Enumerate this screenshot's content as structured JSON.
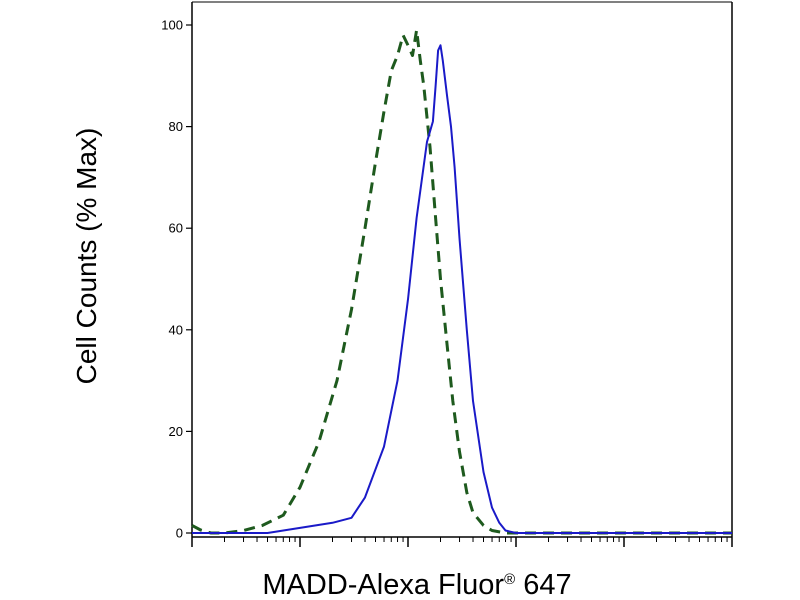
{
  "chart_data": {
    "type": "line",
    "title": "",
    "xlabel": "MADD-Alexa Fluor",
    "xlabel_reg": "®",
    "xlabel_num": " 647",
    "ylabel": "Cell Counts (% Max)",
    "x_scale": "log",
    "xlim": [
      0.1,
      10000
    ],
    "ylim": [
      0,
      100
    ],
    "yticks": [
      0,
      20,
      40,
      60,
      80,
      100
    ],
    "ytick_labels": [
      "0",
      "20",
      "40",
      "60",
      "80",
      "100"
    ],
    "grid": false,
    "legend": "none",
    "series": [
      {
        "style": "dashed",
        "color": "#1e5a1e",
        "x": [
          0.1,
          0.12,
          0.15,
          0.2,
          0.3,
          0.45,
          0.7,
          1.0,
          1.5,
          2.2,
          3.0,
          4.0,
          5.0,
          6.0,
          7.0,
          8.0,
          9.0,
          10.0,
          11.0,
          12.0,
          13.0,
          14.0,
          16.0,
          18.0,
          20.0,
          23.0,
          26.0,
          30.0,
          35.0,
          40.0,
          50.0,
          60.0,
          80.0,
          100.0,
          150.0,
          1000.0,
          10000.0
        ],
        "y": [
          1.5,
          0.6,
          0,
          0,
          0.5,
          1.5,
          3.5,
          9,
          18,
          30,
          44,
          60,
          73,
          83,
          91,
          94,
          98,
          96,
          94,
          99,
          93,
          88,
          76,
          62,
          50,
          37,
          26,
          16,
          8,
          4,
          1.5,
          0.5,
          0,
          0,
          0,
          0,
          0
        ]
      },
      {
        "style": "solid",
        "color": "#1a1ac8",
        "x": [
          0.1,
          0.5,
          1.0,
          2.0,
          3.0,
          4.0,
          6.0,
          8.0,
          10.0,
          12.0,
          15.0,
          17.0,
          18.0,
          19.0,
          20.0,
          21.0,
          23.0,
          25.0,
          27.0,
          30.0,
          35.0,
          40.0,
          50.0,
          60.0,
          70.0,
          80.0,
          100.0,
          120.0,
          10000.0
        ],
        "y": [
          0,
          0,
          1,
          2,
          3,
          7,
          17,
          30,
          46,
          62,
          77,
          81,
          88,
          95,
          96,
          93,
          86,
          80,
          72,
          58,
          40,
          26,
          12,
          5,
          2,
          0.5,
          0,
          0,
          0
        ]
      }
    ]
  }
}
